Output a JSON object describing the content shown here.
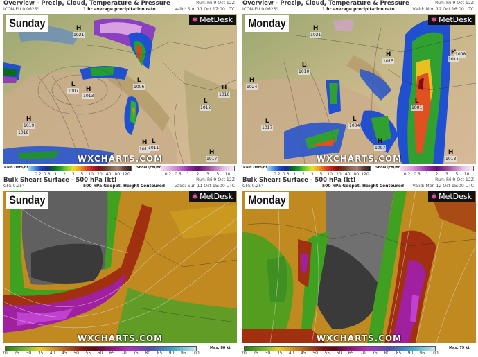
{
  "panels": [
    {
      "id": "precip-sunday",
      "title": "Overview - Precip, Cloud, Temperature & Pressure",
      "model": "ICON-EU 0.0625°",
      "subtitle": "1 hr average precipitation rate",
      "run": "Run: Fri 9 Oct 12Z",
      "valid": "Valid: Sun 11 Oct 17:00 UTC",
      "day_label": "Sunday",
      "logo": "MetDesk",
      "watermark": "WXCHARTS.COM",
      "pressure_centres": [
        {
          "type": "H",
          "value": "1021"
        },
        {
          "type": "L",
          "value": "1007"
        },
        {
          "type": "H",
          "value": "1013"
        },
        {
          "type": "L",
          "value": "1006"
        },
        {
          "type": "H",
          "value": "1016"
        },
        {
          "type": "L",
          "value": "1012"
        },
        {
          "type": "H",
          "value": "1019"
        },
        {
          "type": "",
          "value": "1018"
        },
        {
          "type": "H",
          "value": "1015"
        },
        {
          "type": "L",
          "value": "1011"
        },
        {
          "type": "H",
          "value": "1017"
        }
      ]
    },
    {
      "id": "precip-monday",
      "title": "Overview - Precip, Cloud, Temperature & Pressure",
      "model": "ICON-EU 0.0625°",
      "subtitle": "1 hr average precipitation rate",
      "run": "Run: Fri 9 Oct 12Z",
      "valid": "Valid: Mon 12 Oct 16:00 UTC",
      "day_label": "Monday",
      "logo": "MetDesk",
      "watermark": "WXCHARTS.COM",
      "pressure_centres": [
        {
          "type": "H",
          "value": "1021"
        },
        {
          "type": "L",
          "value": "1010"
        },
        {
          "type": "H",
          "value": "1024"
        },
        {
          "type": "H",
          "value": "1015"
        },
        {
          "type": "H",
          "value": "1011"
        },
        {
          "type": "L",
          "value": "1008"
        },
        {
          "type": "L",
          "value": "1001"
        },
        {
          "type": "L",
          "value": "1004"
        },
        {
          "type": "L",
          "value": "1017"
        },
        {
          "type": "H",
          "value": "1007"
        },
        {
          "type": "H",
          "value": "1013"
        }
      ]
    },
    {
      "id": "shear-sunday",
      "title": "Bulk Shear: Surface - 500 hPa (kt)",
      "model": "GFS 0.25°",
      "subtitle": "500 hPa Geopot. Height Contoured",
      "run": "Run: Fri 9 Oct 12Z",
      "valid": "Valid: Sun 11 Oct 15:00 UTC",
      "day_label": "Sunday",
      "logo": "MetDesk",
      "watermark": "WXCHARTS.COM",
      "max_label": "Max: 80 kt"
    },
    {
      "id": "shear-monday",
      "title": "Bulk Shear: Surface - 500 hPa (kt)",
      "model": "GFS 0.25°",
      "subtitle": "500 hPa Geopot. Height Contoured",
      "run": "Run: Fri 9 Oct 12Z",
      "valid": "Valid: Mon 12 Oct 15:00 UTC",
      "day_label": "Monday",
      "logo": "MetDesk",
      "watermark": "WXCHARTS.COM",
      "max_label": "Max: 79 kt"
    }
  ],
  "legends": {
    "rain": {
      "label": "Rain (mm/hr)",
      "ticks": [
        "0.2",
        "0.6",
        "1",
        "2",
        "3",
        "5",
        "10",
        "20",
        "40",
        "80",
        "120"
      ],
      "colors": [
        "#a8d8ee",
        "#4a90e0",
        "#2040c0",
        "#1a2a90",
        "#0a6a20",
        "#20a030",
        "#80d030",
        "#f0e020",
        "#f0a020",
        "#e05020",
        "#c02020",
        "#801010",
        "#6a3a2a",
        "#8a6a5a",
        "#a08070",
        "#604040",
        "#302020"
      ]
    },
    "snow": {
      "label": "Snow (cm/hr)",
      "ticks": [
        "0.2",
        "0.6",
        "1",
        "2",
        "3",
        "5",
        "10"
      ],
      "colors": [
        "#f4d8f0",
        "#e0a8e0",
        "#c070d0",
        "#9030a0",
        "#601070",
        "#904090",
        "#c080c0",
        "#e8c8e8",
        "#f8ecf8"
      ]
    },
    "shear": {
      "ticks": [
        "20",
        "25",
        "30",
        "35",
        "40",
        "45",
        "50",
        "55",
        "60",
        "65",
        "70",
        "75",
        "80",
        "85",
        "90",
        "95",
        "100"
      ],
      "colors": [
        "#2a7a10",
        "#50a020",
        "#80c030",
        "#e8d020",
        "#d8a020",
        "#c07018",
        "#a04010",
        "#801010",
        "#600818",
        "#801060",
        "#a01890",
        "#b030c0",
        "#8040c0",
        "#5050b0",
        "#4080c0",
        "#40a8c8",
        "#80c8d8",
        "#c8e4ec"
      ]
    }
  }
}
